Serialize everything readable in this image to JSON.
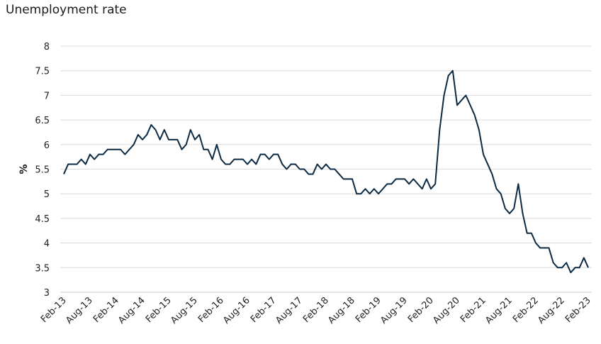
{
  "chart_data": {
    "type": "line",
    "title": "Unemployment rate",
    "xlabel": "",
    "ylabel": "%",
    "ylim": [
      3,
      8
    ],
    "yticks": [
      "3",
      "3.5",
      "4",
      "4.5",
      "5",
      "5.5",
      "6",
      "6.5",
      "7",
      "7.5",
      "8"
    ],
    "xticks": [
      "Feb-13",
      "Aug-13",
      "Feb-14",
      "Aug-14",
      "Feb-15",
      "Aug-15",
      "Feb-16",
      "Aug-16",
      "Feb-17",
      "Aug-17",
      "Feb-18",
      "Aug-18",
      "Feb-19",
      "Aug-19",
      "Feb-20",
      "Aug-20",
      "Feb-21",
      "Aug-21",
      "Feb-22",
      "Aug-22",
      "Feb-23"
    ],
    "grid": true,
    "legend": "none",
    "colors": {
      "line": "#0b2a44",
      "grid": "#dcdcdc",
      "axis": "#c8c8c8"
    },
    "x": [
      "Feb-13",
      "Mar-13",
      "Apr-13",
      "May-13",
      "Jun-13",
      "Jul-13",
      "Aug-13",
      "Sep-13",
      "Oct-13",
      "Nov-13",
      "Dec-13",
      "Jan-14",
      "Feb-14",
      "Mar-14",
      "Apr-14",
      "May-14",
      "Jun-14",
      "Jul-14",
      "Aug-14",
      "Sep-14",
      "Oct-14",
      "Nov-14",
      "Dec-14",
      "Jan-15",
      "Feb-15",
      "Mar-15",
      "Apr-15",
      "May-15",
      "Jun-15",
      "Jul-15",
      "Aug-15",
      "Sep-15",
      "Oct-15",
      "Nov-15",
      "Dec-15",
      "Jan-16",
      "Feb-16",
      "Mar-16",
      "Apr-16",
      "May-16",
      "Jun-16",
      "Jul-16",
      "Aug-16",
      "Sep-16",
      "Oct-16",
      "Nov-16",
      "Dec-16",
      "Jan-17",
      "Feb-17",
      "Mar-17",
      "Apr-17",
      "May-17",
      "Jun-17",
      "Jul-17",
      "Aug-17",
      "Sep-17",
      "Oct-17",
      "Nov-17",
      "Dec-17",
      "Jan-18",
      "Feb-18",
      "Mar-18",
      "Apr-18",
      "May-18",
      "Jun-18",
      "Jul-18",
      "Aug-18",
      "Sep-18",
      "Oct-18",
      "Nov-18",
      "Dec-18",
      "Jan-19",
      "Feb-19",
      "Mar-19",
      "Apr-19",
      "May-19",
      "Jun-19",
      "Jul-19",
      "Aug-19",
      "Sep-19",
      "Oct-19",
      "Nov-19",
      "Dec-19",
      "Jan-20",
      "Feb-20",
      "Mar-20",
      "Apr-20",
      "May-20",
      "Jun-20",
      "Jul-20",
      "Aug-20",
      "Sep-20",
      "Oct-20",
      "Nov-20",
      "Dec-20",
      "Jan-21",
      "Feb-21",
      "Mar-21",
      "Apr-21",
      "May-21",
      "Jun-21",
      "Jul-21",
      "Aug-21",
      "Sep-21",
      "Oct-21",
      "Nov-21",
      "Dec-21",
      "Jan-22",
      "Feb-22",
      "Mar-22",
      "Apr-22",
      "May-22",
      "Jun-22",
      "Jul-22",
      "Aug-22",
      "Sep-22",
      "Oct-22",
      "Nov-22",
      "Dec-22",
      "Jan-23",
      "Feb-23"
    ],
    "series": [
      {
        "values": [
          5.4,
          5.6,
          5.6,
          5.6,
          5.7,
          5.6,
          5.8,
          5.7,
          5.8,
          5.8,
          5.9,
          5.9,
          5.9,
          5.9,
          5.8,
          5.9,
          6.0,
          6.2,
          6.1,
          6.2,
          6.4,
          6.3,
          6.1,
          6.3,
          6.1,
          6.1,
          6.1,
          5.9,
          6.0,
          6.3,
          6.1,
          6.2,
          5.9,
          5.9,
          5.7,
          6.0,
          5.7,
          5.6,
          5.6,
          5.7,
          5.7,
          5.7,
          5.6,
          5.7,
          5.6,
          5.8,
          5.8,
          5.7,
          5.8,
          5.8,
          5.6,
          5.5,
          5.6,
          5.6,
          5.5,
          5.5,
          5.4,
          5.4,
          5.6,
          5.5,
          5.6,
          5.5,
          5.5,
          5.4,
          5.3,
          5.3,
          5.3,
          5.0,
          5.0,
          5.1,
          5.0,
          5.1,
          5.0,
          5.1,
          5.2,
          5.2,
          5.3,
          5.3,
          5.3,
          5.2,
          5.3,
          5.2,
          5.1,
          5.3,
          5.1,
          5.2,
          6.3,
          7.0,
          7.4,
          7.5,
          6.8,
          6.9,
          7.0,
          6.8,
          6.6,
          6.3,
          5.8,
          5.6,
          5.4,
          5.1,
          5.0,
          4.7,
          4.6,
          4.7,
          5.2,
          4.6,
          4.2,
          4.2,
          4.0,
          3.9,
          3.9,
          3.9,
          3.6,
          3.5,
          3.5,
          3.6,
          3.4,
          3.5,
          3.5,
          3.7,
          3.5
        ]
      }
    ]
  }
}
